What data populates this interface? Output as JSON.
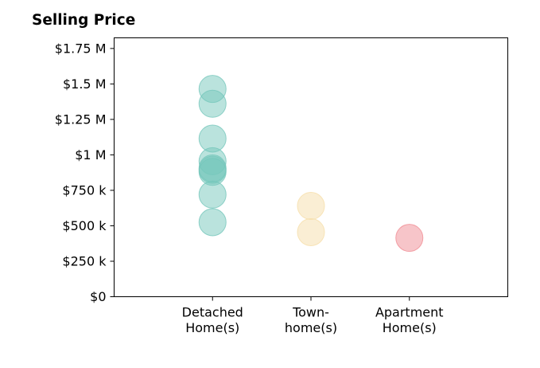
{
  "chart_data": {
    "type": "scatter",
    "title": "Selling Price",
    "xlabel": "",
    "ylabel": "",
    "categories": [
      {
        "lines": [
          "Detached",
          "Home(s)"
        ],
        "color": "#76c7bb"
      },
      {
        "lines": [
          "Town-",
          "home(s)"
        ],
        "color": "#f6deaa"
      },
      {
        "lines": [
          "Apartment",
          "Home(s)"
        ],
        "color": "#f08c94"
      }
    ],
    "x_range": [
      -1,
      3
    ],
    "ylim": [
      0,
      1825000
    ],
    "yticks": [
      {
        "value": 0,
        "label": "$0"
      },
      {
        "value": 250000,
        "label": "$250 k"
      },
      {
        "value": 500000,
        "label": "$500 k"
      },
      {
        "value": 750000,
        "label": "$750 k"
      },
      {
        "value": 1000000,
        "label": "$1 M"
      },
      {
        "value": 1250000,
        "label": "$1.25 M"
      },
      {
        "value": 1500000,
        "label": "$1.5 M"
      },
      {
        "value": 1750000,
        "label": "$1.75 M"
      }
    ],
    "grid": false,
    "series": [
      {
        "category": 0,
        "values": [
          1465000,
          1360000,
          1115000,
          955000,
          905000,
          895000,
          880000,
          720000,
          525000
        ]
      },
      {
        "category": 1,
        "values": [
          640000,
          455000
        ]
      },
      {
        "category": 2,
        "values": [
          415000
        ]
      }
    ]
  }
}
